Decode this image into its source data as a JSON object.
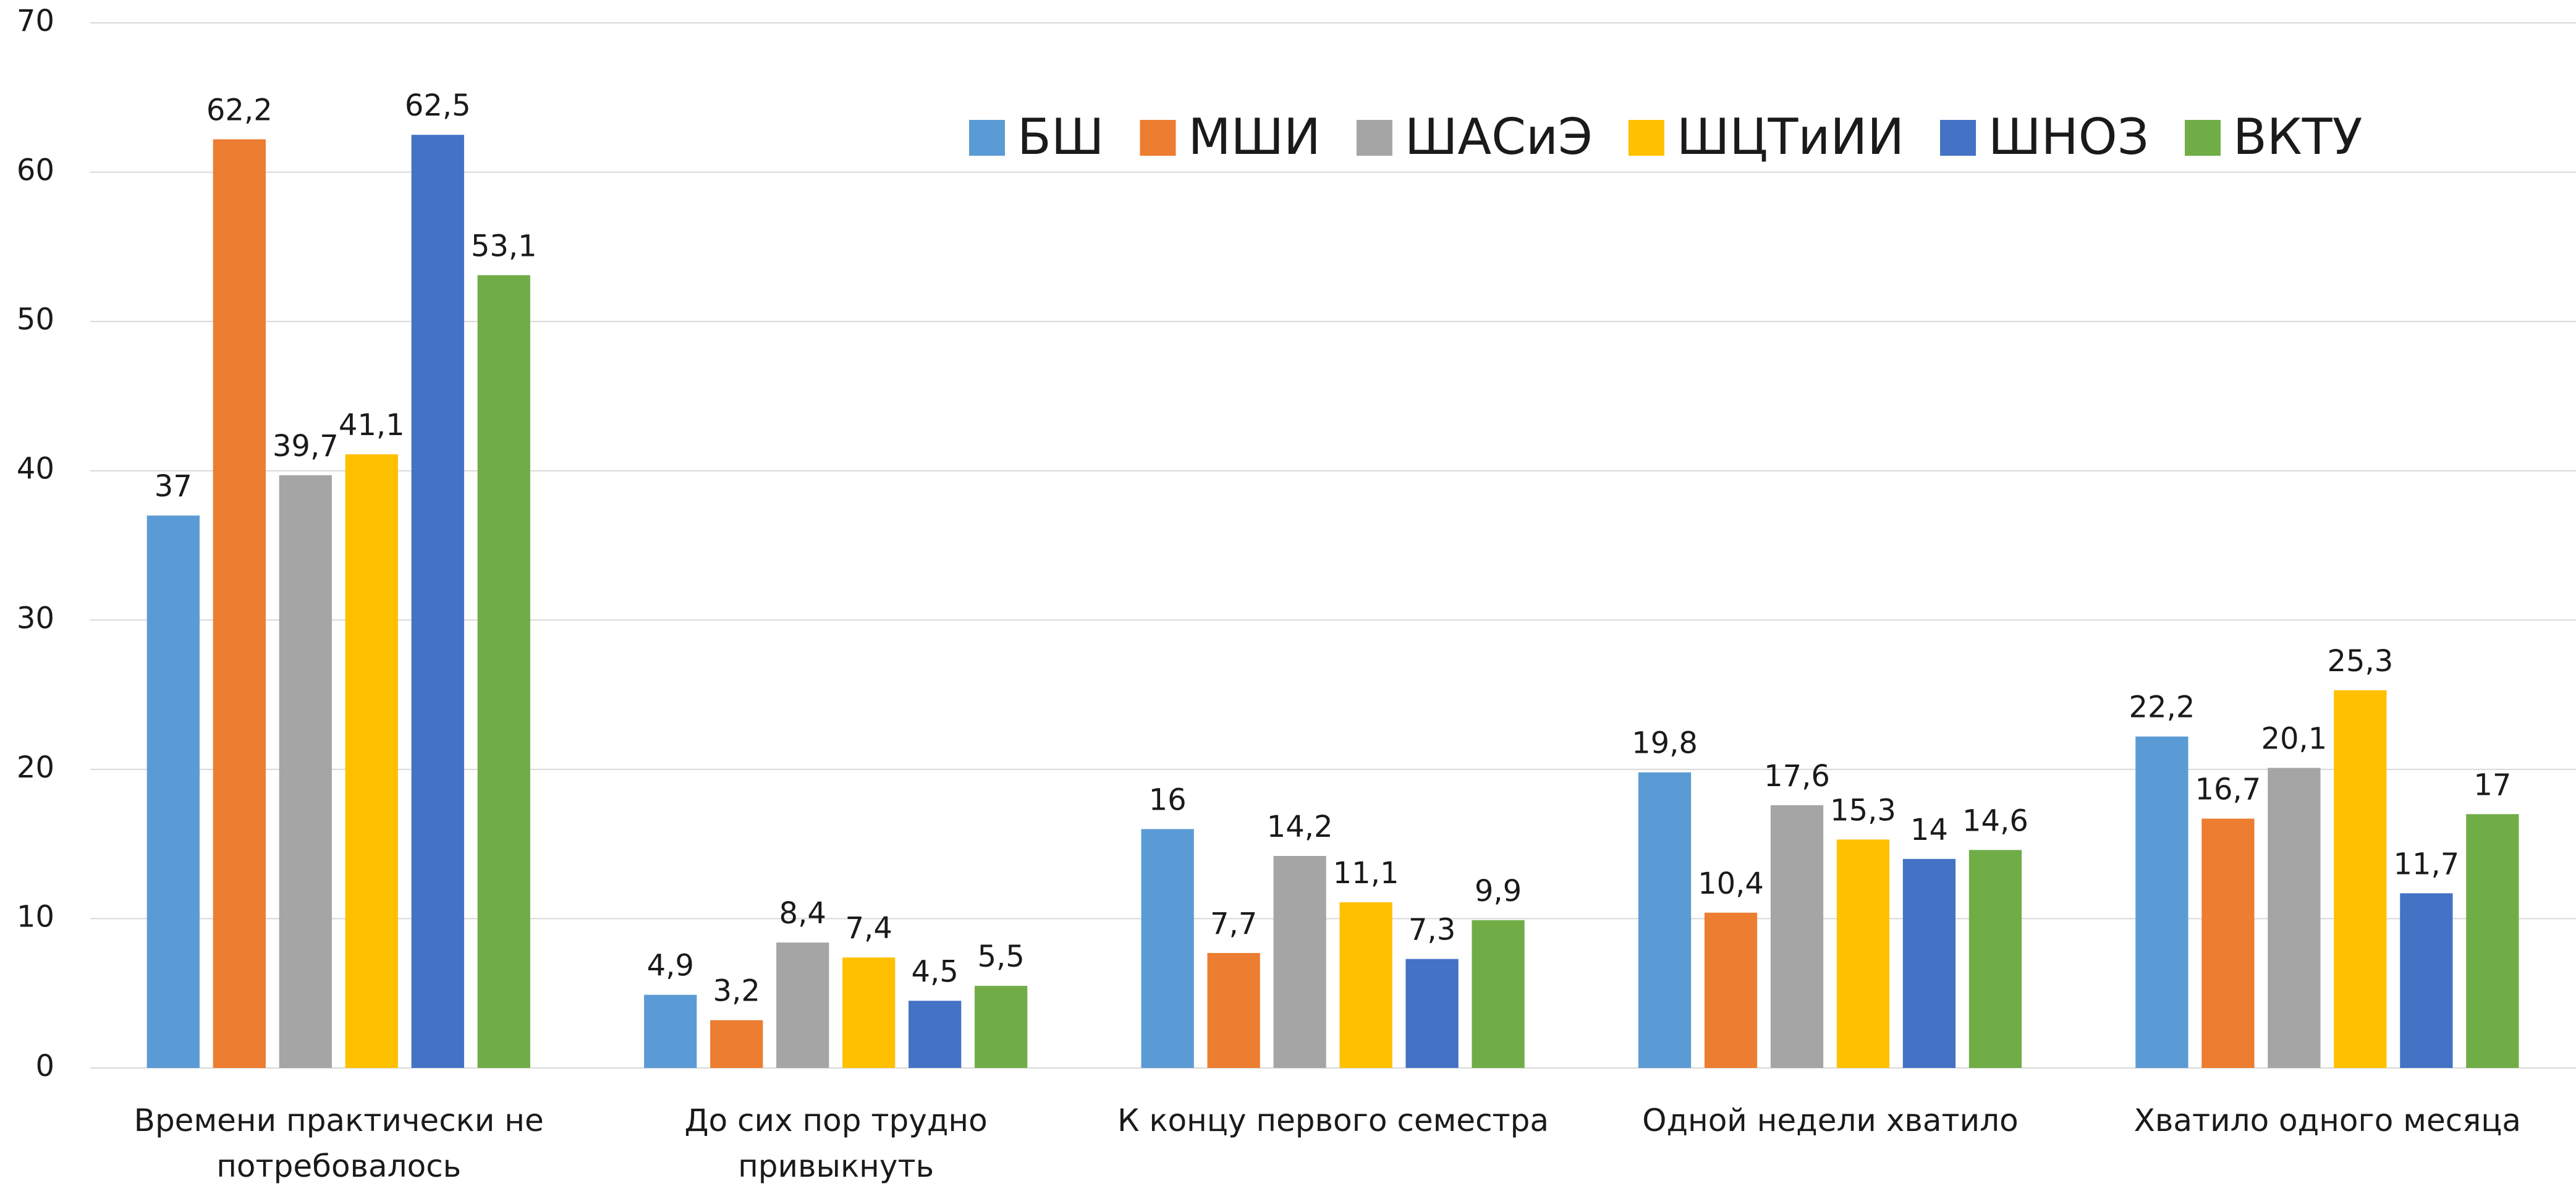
{
  "chart_data": {
    "type": "bar",
    "categories": [
      "Времени практически не потребовалось",
      "До сих пор трудно привыкнуть",
      "К концу первого семестра",
      "Одной недели хватило",
      "Хватило одного месяца"
    ],
    "series": [
      {
        "name": "БШ",
        "color": "#5b9bd5",
        "values": [
          37,
          4.9,
          16,
          19.8,
          22.2
        ],
        "value_labels": [
          "37",
          "4,9",
          "16",
          "19,8",
          "22,2"
        ]
      },
      {
        "name": "МШИ",
        "color": "#ed7d31",
        "values": [
          62.2,
          3.2,
          7.7,
          10.4,
          16.7
        ],
        "value_labels": [
          "62,2",
          "3,2",
          "7,7",
          "10,4",
          "16,7"
        ]
      },
      {
        "name": "ШАСиЭ",
        "color": "#a5a5a5",
        "values": [
          39.7,
          8.4,
          14.2,
          17.6,
          20.1
        ],
        "value_labels": [
          "39,7",
          "8,4",
          "14,2",
          "17,6",
          "20,1"
        ]
      },
      {
        "name": "ШЦТиИИ",
        "color": "#ffc000",
        "values": [
          41.1,
          7.4,
          11.1,
          15.3,
          25.3
        ],
        "value_labels": [
          "41,1",
          "7,4",
          "11,1",
          "15,3",
          "25,3"
        ]
      },
      {
        "name": "ШНОЗ",
        "color": "#4472c4",
        "values": [
          62.5,
          4.5,
          7.3,
          14,
          11.7
        ],
        "value_labels": [
          "62,5",
          "4,5",
          "7,3",
          "14",
          "11,7"
        ]
      },
      {
        "name": "ВКТУ",
        "color": "#70ad47",
        "values": [
          53.1,
          5.5,
          9.9,
          14.6,
          17
        ],
        "value_labels": [
          "53,1",
          "5,5",
          "9,9",
          "14,6",
          "17"
        ]
      }
    ],
    "ylim": [
      0,
      70
    ],
    "yticks": [
      0,
      10,
      20,
      30,
      40,
      50,
      60,
      70
    ],
    "grid": true,
    "legend": "top-right"
  }
}
